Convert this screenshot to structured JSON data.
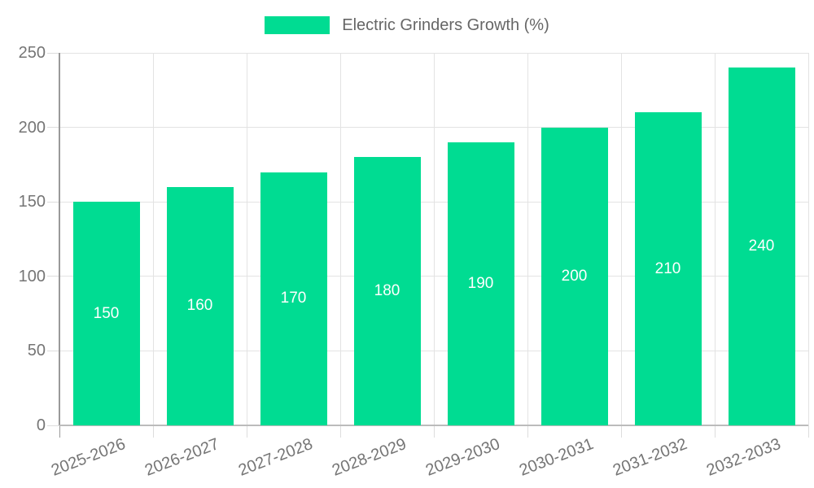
{
  "chart_data": {
    "type": "bar",
    "title": "",
    "legend": "Electric Grinders Growth (%)",
    "legend_position": "top-center",
    "categories": [
      "2025-2026",
      "2026-2027",
      "2027-2028",
      "2028-2029",
      "2029-2030",
      "2030-2031",
      "2031-2032",
      "2032-2033"
    ],
    "values": [
      150,
      160,
      170,
      180,
      190,
      200,
      210,
      240
    ],
    "xlabel": "",
    "ylabel": "",
    "ylim": [
      0,
      250
    ],
    "yticks": [
      0,
      50,
      100,
      150,
      200,
      250
    ],
    "grid": true,
    "x_label_rotation_deg": -21,
    "colors": {
      "bar": "#00dc92",
      "bar_label_text": "#ffffff",
      "grid_line": "#e3e3e3",
      "tick_line": "#dddddd",
      "axis_left_line": "#999999",
      "axis_bottom_line": "#bbbbbb",
      "axis_text": "#757575",
      "legend_text": "#666666",
      "background": "#ffffff"
    }
  }
}
